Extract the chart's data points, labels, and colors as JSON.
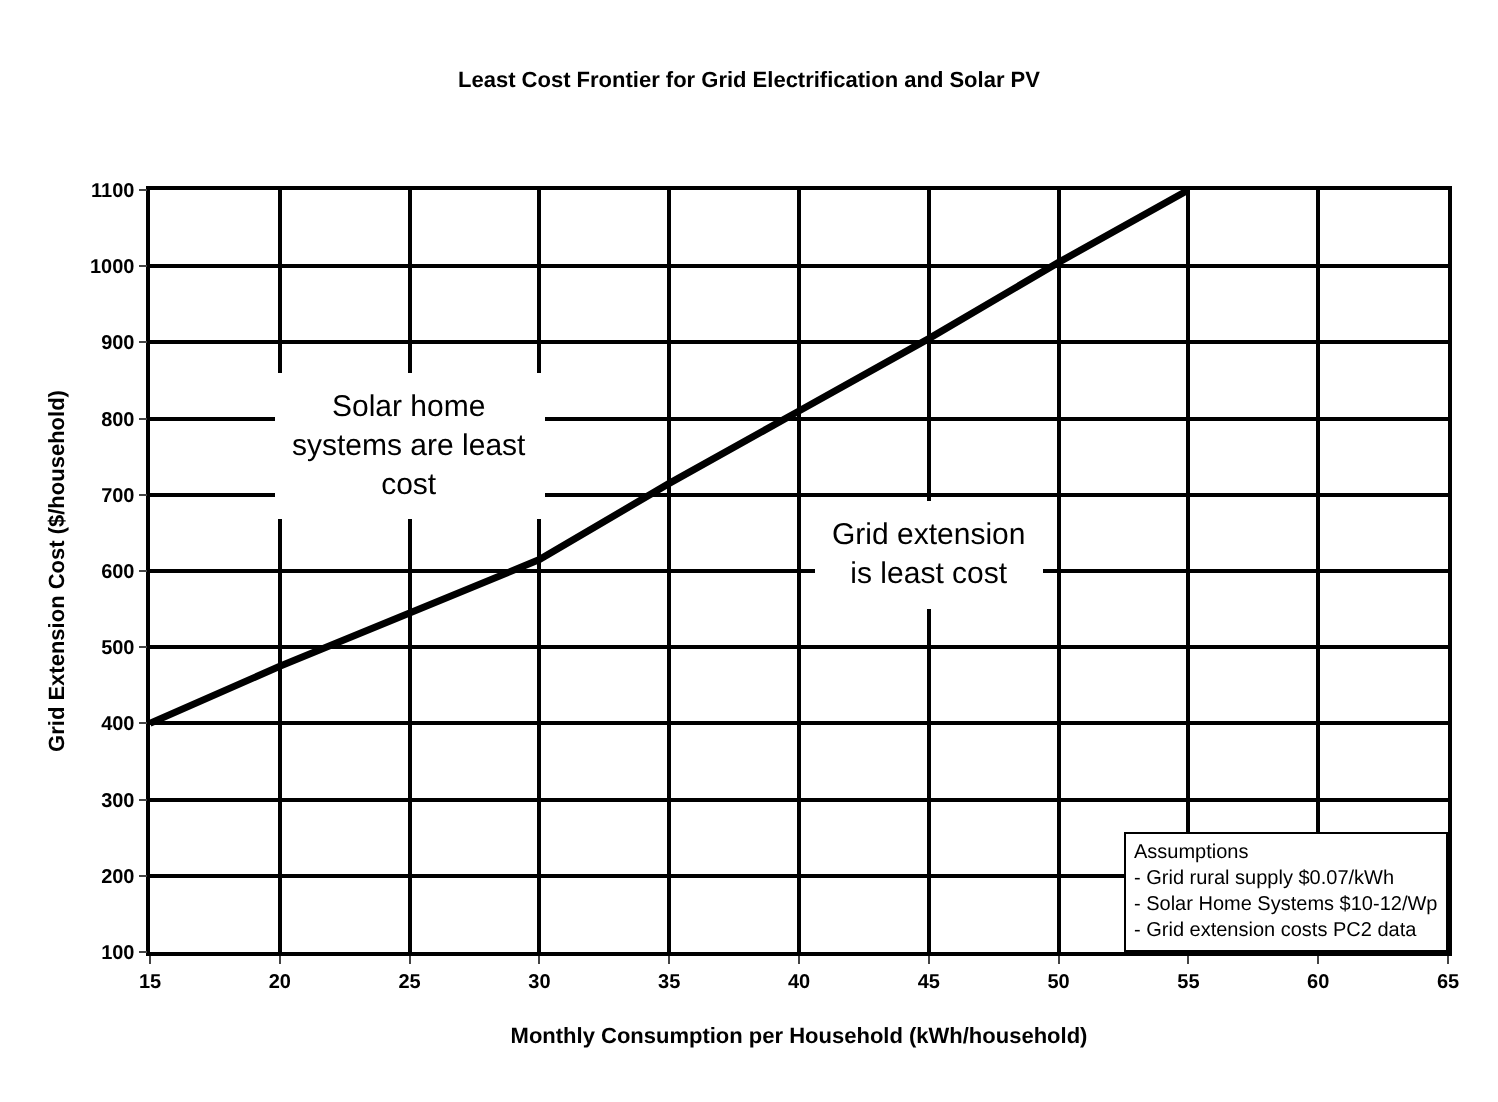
{
  "chart_data": {
    "type": "line",
    "title": "Least Cost Frontier for Grid Electrification and Solar PV",
    "xlabel": "Monthly Consumption per Household (kWh/household)",
    "ylabel": "Grid Extension Cost ($/household)",
    "x": [
      15,
      20,
      25,
      30,
      35,
      40,
      45,
      50,
      55
    ],
    "series": [
      {
        "color": "#000000",
        "values": [
          400,
          475,
          545,
          615,
          715,
          810,
          905,
          1005,
          1100
        ]
      }
    ],
    "xlim": [
      15,
      65
    ],
    "xticks": [
      15,
      20,
      25,
      30,
      35,
      40,
      45,
      50,
      55,
      60,
      65
    ],
    "ylim": [
      100,
      1100
    ],
    "yticks": [
      100,
      200,
      300,
      400,
      500,
      600,
      700,
      800,
      900,
      1000,
      1100
    ],
    "grid": true,
    "marker": "none",
    "line_style": "solid",
    "annotations": [
      "Solar home\nsystems are least\ncost",
      "Grid extension\nis least cost",
      "Assumptions\n- Grid rural supply $0.07/kWh\n- Solar Home Systems $10-12/Wp\n- Grid extension costs PC2 data"
    ]
  }
}
